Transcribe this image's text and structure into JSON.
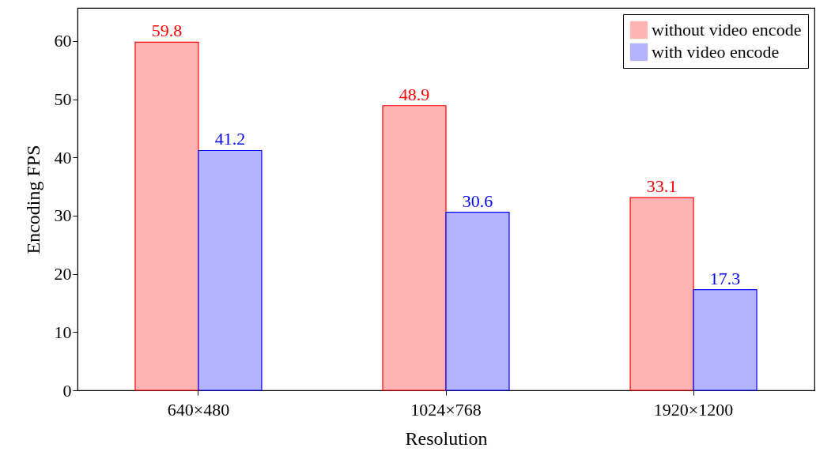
{
  "chart_data": {
    "type": "bar",
    "xlabel": "Resolution",
    "ylabel": "Encoding FPS",
    "categories": [
      "640×480",
      "1024×768",
      "1920×1200"
    ],
    "series": [
      {
        "name": "without video encode",
        "color": "#ffb3b3",
        "values": [
          59.8,
          48.9,
          33.1
        ]
      },
      {
        "name": "with video encode",
        "color": "#b3b3ff",
        "values": [
          41.2,
          30.6,
          17.3
        ]
      }
    ],
    "ylim": [
      0,
      65.7
    ],
    "yticks": [
      0,
      10,
      20,
      30,
      40,
      50,
      60
    ],
    "data_labels": true,
    "legend": "top right",
    "grid": false
  }
}
